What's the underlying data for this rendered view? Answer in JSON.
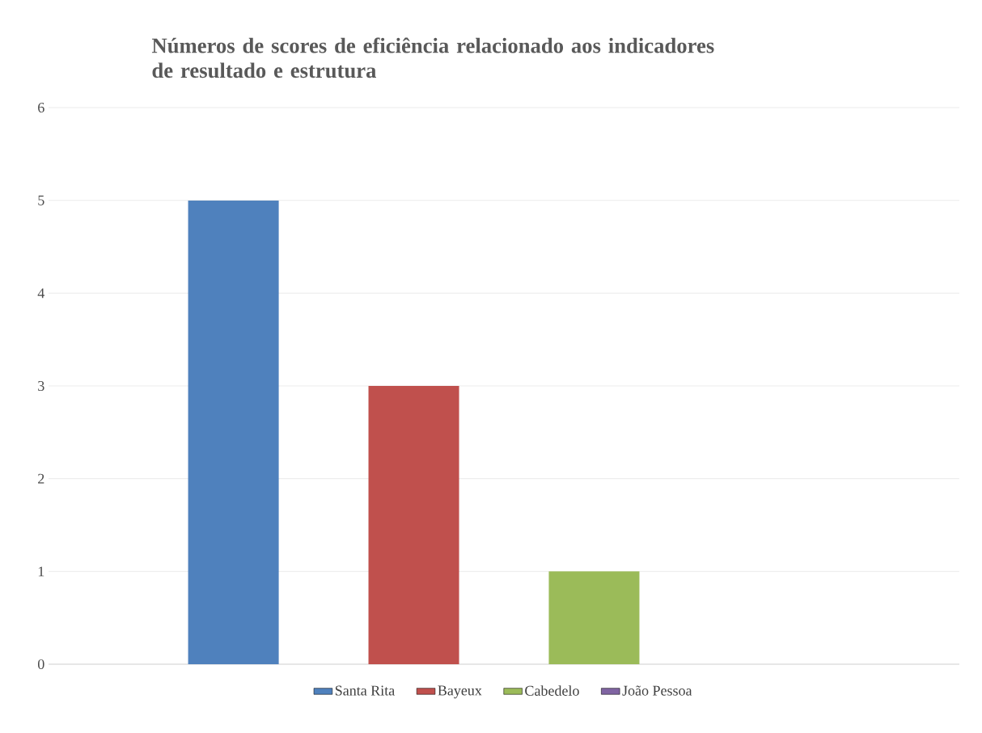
{
  "chart_data": {
    "type": "bar",
    "title": "Números de scores de eficiência relacionado aos indicadores de resultado e estrutura",
    "categories": [
      null
    ],
    "series": [
      {
        "name": "Santa Rita",
        "color": "#4f81bd",
        "values": [
          5
        ]
      },
      {
        "name": "Bayeux",
        "color": "#c0504d",
        "values": [
          3
        ]
      },
      {
        "name": "Cabedelo",
        "color": "#9bbb59",
        "values": [
          1
        ]
      },
      {
        "name": "João Pessoa",
        "color": "#8064a2",
        "values": [
          0
        ]
      }
    ],
    "ylim": [
      0,
      6
    ],
    "yticks": [
      0,
      1,
      2,
      3,
      4,
      5,
      6
    ],
    "grid": "y",
    "legend": "bottom"
  }
}
